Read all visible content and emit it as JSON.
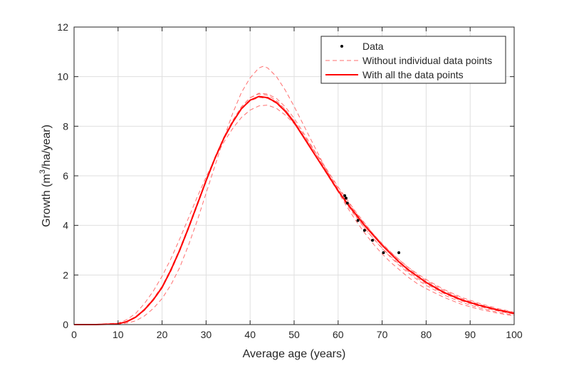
{
  "chart_data": {
    "type": "line",
    "xlabel": "Average age (years)",
    "ylabel": {
      "prefix": "Growth (m",
      "sup": "3",
      "suffix": "/ha/year)"
    },
    "xlim": [
      0,
      100
    ],
    "ylim": [
      0,
      12
    ],
    "xticks": [
      0,
      10,
      20,
      30,
      40,
      50,
      60,
      70,
      80,
      90,
      100
    ],
    "yticks": [
      0,
      2,
      4,
      6,
      8,
      10,
      12
    ],
    "grid": true,
    "legend": {
      "placement": "top-right",
      "entries": [
        "Data",
        "Without individual data points",
        "With all the data points"
      ]
    },
    "colors": {
      "fit": "#ff0000",
      "loo": "#ff6f6f",
      "data": "#000000",
      "grid": "#dfdfdf",
      "axis": "#262626"
    },
    "data_points": [
      {
        "x": 61.5,
        "y": 5.2
      },
      {
        "x": 61.8,
        "y": 5.1
      },
      {
        "x": 62.1,
        "y": 4.9
      },
      {
        "x": 64.5,
        "y": 4.2
      },
      {
        "x": 66.0,
        "y": 3.8
      },
      {
        "x": 67.8,
        "y": 3.4
      },
      {
        "x": 70.3,
        "y": 2.9
      },
      {
        "x": 73.8,
        "y": 2.9
      }
    ],
    "series": [
      {
        "name": "With all the data points",
        "style": "solid",
        "x": [
          0,
          5,
          10,
          12,
          14,
          16,
          18,
          20,
          22,
          24,
          26,
          28,
          30,
          32,
          34,
          36,
          38,
          40,
          42,
          44,
          46,
          48,
          50,
          52,
          54,
          56,
          58,
          60,
          62,
          64,
          66,
          68,
          70,
          72,
          74,
          76,
          78,
          80,
          84,
          88,
          92,
          96,
          100
        ],
        "y": [
          0,
          0,
          0.03,
          0.12,
          0.3,
          0.6,
          1.0,
          1.5,
          2.2,
          3.0,
          3.9,
          4.85,
          5.8,
          6.7,
          7.5,
          8.15,
          8.7,
          9.05,
          9.2,
          9.15,
          8.95,
          8.6,
          8.15,
          7.6,
          7.05,
          6.5,
          5.95,
          5.4,
          4.9,
          4.45,
          4.0,
          3.6,
          3.2,
          2.85,
          2.5,
          2.2,
          1.95,
          1.7,
          1.3,
          1.0,
          0.78,
          0.6,
          0.45
        ]
      },
      {
        "style": "dashed",
        "x": [
          0,
          5,
          10,
          12,
          14,
          16,
          18,
          20,
          22,
          24,
          26,
          28,
          30,
          32,
          34,
          36,
          38,
          40,
          42,
          43,
          44,
          46,
          48,
          50,
          52,
          54,
          56,
          58,
          60,
          62,
          64,
          66,
          68,
          70,
          72,
          74,
          76,
          78,
          80,
          84,
          88,
          92,
          96,
          100
        ],
        "y": [
          0,
          0,
          0.02,
          0.06,
          0.15,
          0.35,
          0.65,
          1.05,
          1.6,
          2.3,
          3.2,
          4.2,
          5.3,
          6.4,
          7.5,
          8.5,
          9.35,
          9.95,
          10.35,
          10.42,
          10.35,
          10.0,
          9.45,
          8.8,
          8.1,
          7.4,
          6.7,
          6.0,
          5.35,
          4.75,
          4.2,
          3.7,
          3.25,
          2.85,
          2.5,
          2.2,
          1.9,
          1.65,
          1.45,
          1.1,
          0.82,
          0.62,
          0.47,
          0.35
        ]
      },
      {
        "style": "dashed",
        "x": [
          0,
          5,
          10,
          12,
          14,
          16,
          18,
          20,
          22,
          24,
          26,
          28,
          30,
          32,
          34,
          36,
          38,
          40,
          42,
          44,
          46,
          48,
          50,
          52,
          54,
          56,
          58,
          60,
          62,
          64,
          66,
          68,
          70,
          72,
          74,
          76,
          78,
          80,
          84,
          88,
          92,
          96,
          100
        ],
        "y": [
          0,
          0.01,
          0.06,
          0.2,
          0.45,
          0.85,
          1.35,
          1.95,
          2.65,
          3.45,
          4.3,
          5.15,
          5.95,
          6.7,
          7.35,
          7.9,
          8.35,
          8.65,
          8.82,
          8.85,
          8.72,
          8.45,
          8.1,
          7.65,
          7.15,
          6.65,
          6.1,
          5.55,
          5.05,
          4.55,
          4.1,
          3.65,
          3.25,
          2.9,
          2.6,
          2.3,
          2.05,
          1.82,
          1.42,
          1.1,
          0.86,
          0.66,
          0.5
        ]
      },
      {
        "style": "dashed",
        "x": [
          0,
          5,
          10,
          12,
          14,
          16,
          18,
          20,
          22,
          24,
          26,
          28,
          30,
          32,
          34,
          36,
          38,
          40,
          42,
          44,
          46,
          48,
          50,
          52,
          54,
          56,
          58,
          60,
          62,
          64,
          66,
          68,
          70,
          72,
          74,
          76,
          78,
          80,
          84,
          88,
          92,
          96,
          100
        ],
        "y": [
          0,
          0,
          0.03,
          0.11,
          0.28,
          0.57,
          0.97,
          1.47,
          2.15,
          2.95,
          3.85,
          4.8,
          5.78,
          6.7,
          7.52,
          8.2,
          8.77,
          9.15,
          9.33,
          9.3,
          9.12,
          8.78,
          8.32,
          7.77,
          7.2,
          6.6,
          6.0,
          5.42,
          4.88,
          4.38,
          3.9,
          3.47,
          3.07,
          2.7,
          2.37,
          2.07,
          1.81,
          1.58,
          1.2,
          0.9,
          0.68,
          0.51,
          0.38
        ]
      },
      {
        "style": "dashed",
        "x": [
          0,
          5,
          10,
          12,
          14,
          16,
          18,
          20,
          22,
          24,
          26,
          28,
          30,
          32,
          34,
          36,
          38,
          40,
          42,
          44,
          46,
          48,
          50,
          52,
          54,
          56,
          58,
          60,
          62,
          64,
          66,
          68,
          70,
          72,
          74,
          76,
          78,
          80,
          84,
          88,
          92,
          96,
          100
        ],
        "y": [
          0,
          0,
          0.04,
          0.13,
          0.32,
          0.63,
          1.04,
          1.55,
          2.25,
          3.05,
          3.95,
          4.9,
          5.85,
          6.75,
          7.55,
          8.2,
          8.72,
          9.05,
          9.2,
          9.17,
          8.98,
          8.65,
          8.22,
          7.7,
          7.15,
          6.6,
          6.05,
          5.5,
          5.0,
          4.52,
          4.07,
          3.65,
          3.27,
          2.92,
          2.59,
          2.29,
          2.02,
          1.78,
          1.38,
          1.06,
          0.82,
          0.63,
          0.49
        ]
      },
      {
        "style": "dashed",
        "x": [
          0,
          5,
          10,
          12,
          14,
          16,
          18,
          20,
          22,
          24,
          26,
          28,
          30,
          32,
          34,
          36,
          38,
          40,
          42,
          44,
          46,
          48,
          50,
          52,
          54,
          56,
          58,
          60,
          62,
          64,
          66,
          68,
          70,
          72,
          74,
          76,
          78,
          80,
          84,
          88,
          92,
          96,
          100
        ],
        "y": [
          0,
          0,
          0.03,
          0.12,
          0.3,
          0.6,
          1.0,
          1.5,
          2.2,
          3.0,
          3.9,
          4.85,
          5.82,
          6.73,
          7.55,
          8.22,
          8.78,
          9.15,
          9.3,
          9.25,
          9.03,
          8.68,
          8.2,
          7.64,
          7.06,
          6.48,
          5.91,
          5.35,
          4.83,
          4.35,
          3.9,
          3.48,
          3.09,
          2.74,
          2.42,
          2.13,
          1.87,
          1.64,
          1.26,
          0.96,
          0.73,
          0.56,
          0.42
        ]
      },
      {
        "style": "dashed",
        "x": [
          0,
          5,
          10,
          12,
          14,
          16,
          18,
          20,
          22,
          24,
          26,
          28,
          30,
          32,
          34,
          36,
          38,
          40,
          42,
          44,
          46,
          48,
          50,
          52,
          54,
          56,
          58,
          60,
          62,
          64,
          66,
          68,
          70,
          72,
          74,
          76,
          78,
          80,
          84,
          88,
          92,
          96,
          100
        ],
        "y": [
          0,
          0,
          0.03,
          0.12,
          0.29,
          0.59,
          0.99,
          1.49,
          2.19,
          2.99,
          3.9,
          4.85,
          5.8,
          6.7,
          7.5,
          8.15,
          8.68,
          9.02,
          9.16,
          9.12,
          8.92,
          8.58,
          8.14,
          7.61,
          7.06,
          6.52,
          5.97,
          5.43,
          4.93,
          4.47,
          4.02,
          3.62,
          3.22,
          2.87,
          2.53,
          2.23,
          1.98,
          1.73,
          1.33,
          1.02,
          0.8,
          0.61,
          0.46
        ]
      }
    ]
  }
}
